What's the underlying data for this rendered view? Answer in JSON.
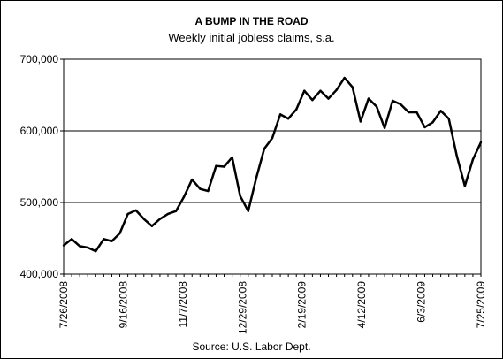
{
  "chart_data": {
    "type": "line",
    "title": "A BUMP IN THE ROAD",
    "subtitle": "Weekly initial jobless claims, s.a.",
    "source": "Source: U.S. Labor Dept.",
    "xlabel": "",
    "ylabel": "",
    "ylim": [
      400000,
      700000
    ],
    "yticks": [
      400000,
      500000,
      600000,
      700000
    ],
    "ytick_labels": [
      "400,000",
      "500,000",
      "600,000",
      "700,000"
    ],
    "xtick_labels": [
      "7/26/2008",
      "9/16/2008",
      "11/7/2008",
      "12/29/2008",
      "2/19/2009",
      "4/12/2009",
      "6/3/2009",
      "7/25/2009"
    ],
    "gridlines": "horizontal",
    "line_color": "#000000",
    "series": [
      {
        "name": "",
        "values": [
          440000,
          449000,
          439000,
          437000,
          432000,
          449000,
          446000,
          457000,
          484000,
          489000,
          477000,
          467000,
          477000,
          484000,
          488000,
          508000,
          532000,
          519000,
          516000,
          551000,
          550000,
          563000,
          509000,
          488000,
          534000,
          575000,
          590000,
          623000,
          617000,
          630000,
          656000,
          643000,
          656000,
          645000,
          657000,
          674000,
          661000,
          613000,
          645000,
          634000,
          604000,
          642000,
          637000,
          626000,
          626000,
          605000,
          612000,
          628000,
          617000,
          565000,
          523000,
          560000,
          584000
        ]
      }
    ]
  }
}
